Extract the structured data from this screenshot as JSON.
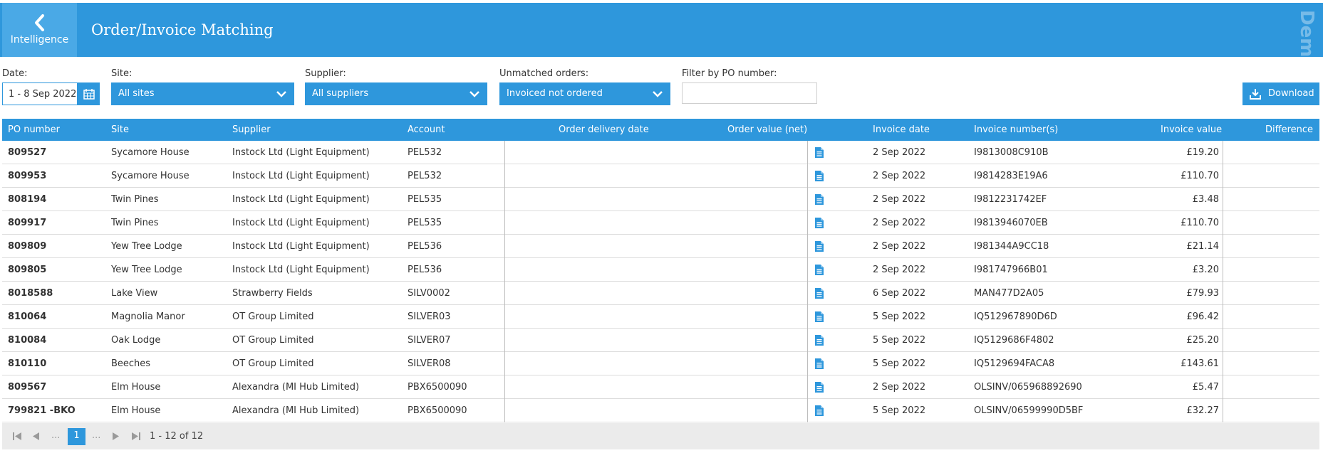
{
  "header": {
    "back_label": "Intelligence",
    "title": "Order/Invoice Matching",
    "watermark": "Demo Site",
    "color": "#2e97dc"
  },
  "filters": {
    "date_label": "Date:",
    "date_value": "1 - 8 Sep 2022",
    "site_label": "Site:",
    "site_value": "All sites",
    "supplier_label": "Supplier:",
    "supplier_value": "All suppliers",
    "unmatched_label": "Unmatched orders:",
    "unmatched_value": "Invoiced not ordered",
    "po_filter_label": "Filter by PO number:",
    "po_filter_value": "",
    "download_label": "Download"
  },
  "table": {
    "columns": [
      "PO number",
      "Site",
      "Supplier",
      "Account",
      "Order delivery date",
      "Order value (net)",
      "Invoice date",
      "Invoice number(s)",
      "Invoice value",
      "Difference"
    ],
    "rows": [
      {
        "po": "809527",
        "site": "Sycamore House",
        "supplier": "Instock Ltd (Light Equipment)",
        "account": "PEL532",
        "delivery": "",
        "order_value": "",
        "invoice_date": "2 Sep 2022",
        "invoice_no": "I9813008C910B",
        "invoice_value": "£19.20",
        "difference": ""
      },
      {
        "po": "809953",
        "site": "Sycamore House",
        "supplier": "Instock Ltd (Light Equipment)",
        "account": "PEL532",
        "delivery": "",
        "order_value": "",
        "invoice_date": "2 Sep 2022",
        "invoice_no": "I9814283E19A6",
        "invoice_value": "£110.70",
        "difference": ""
      },
      {
        "po": "808194",
        "site": "Twin Pines",
        "supplier": "Instock Ltd (Light Equipment)",
        "account": "PEL535",
        "delivery": "",
        "order_value": "",
        "invoice_date": "2 Sep 2022",
        "invoice_no": "I9812231742EF",
        "invoice_value": "£3.48",
        "difference": ""
      },
      {
        "po": "809917",
        "site": "Twin Pines",
        "supplier": "Instock Ltd (Light Equipment)",
        "account": "PEL535",
        "delivery": "",
        "order_value": "",
        "invoice_date": "2 Sep 2022",
        "invoice_no": "I9813946070EB",
        "invoice_value": "£110.70",
        "difference": ""
      },
      {
        "po": "809809",
        "site": "Yew Tree Lodge",
        "supplier": "Instock Ltd (Light Equipment)",
        "account": "PEL536",
        "delivery": "",
        "order_value": "",
        "invoice_date": "2 Sep 2022",
        "invoice_no": "I981344A9CC18",
        "invoice_value": "£21.14",
        "difference": ""
      },
      {
        "po": "809805",
        "site": "Yew Tree Lodge",
        "supplier": "Instock Ltd (Light Equipment)",
        "account": "PEL536",
        "delivery": "",
        "order_value": "",
        "invoice_date": "2 Sep 2022",
        "invoice_no": "I981747966B01",
        "invoice_value": "£3.20",
        "difference": ""
      },
      {
        "po": "8018588",
        "site": "Lake View",
        "supplier": "Strawberry Fields",
        "account": "SILV0002",
        "delivery": "",
        "order_value": "",
        "invoice_date": "6 Sep 2022",
        "invoice_no": "MAN477D2A05",
        "invoice_value": "£79.93",
        "difference": ""
      },
      {
        "po": "810064",
        "site": "Magnolia Manor",
        "supplier": "OT Group Limited",
        "account": "SILVER03",
        "delivery": "",
        "order_value": "",
        "invoice_date": "5 Sep 2022",
        "invoice_no": "IQ512967890D6D",
        "invoice_value": "£96.42",
        "difference": ""
      },
      {
        "po": "810084",
        "site": "Oak Lodge",
        "supplier": "OT Group Limited",
        "account": "SILVER07",
        "delivery": "",
        "order_value": "",
        "invoice_date": "5 Sep 2022",
        "invoice_no": "IQ5129686F4802",
        "invoice_value": "£25.20",
        "difference": ""
      },
      {
        "po": "810110",
        "site": "Beeches",
        "supplier": "OT Group Limited",
        "account": "SILVER08",
        "delivery": "",
        "order_value": "",
        "invoice_date": "5 Sep 2022",
        "invoice_no": "IQ5129694FACA8",
        "invoice_value": "£143.61",
        "difference": ""
      },
      {
        "po": "809567",
        "site": "Elm House",
        "supplier": "Alexandra (MI Hub Limited)",
        "account": "PBX6500090",
        "delivery": "",
        "order_value": "",
        "invoice_date": "2 Sep 2022",
        "invoice_no": "OLSINV/065968892690",
        "invoice_value": "£5.47",
        "difference": ""
      },
      {
        "po": "799821 -BKO",
        "site": "Elm House",
        "supplier": "Alexandra (MI Hub Limited)",
        "account": "PBX6500090",
        "delivery": "",
        "order_value": "",
        "invoice_date": "5 Sep 2022",
        "invoice_no": "OLSINV/06599990D5BF",
        "invoice_value": "£32.27",
        "difference": ""
      }
    ],
    "doc_icon": "document-icon"
  },
  "pager": {
    "ellipsis": "...",
    "current_page": "1",
    "info": "1 - 12 of 12"
  }
}
